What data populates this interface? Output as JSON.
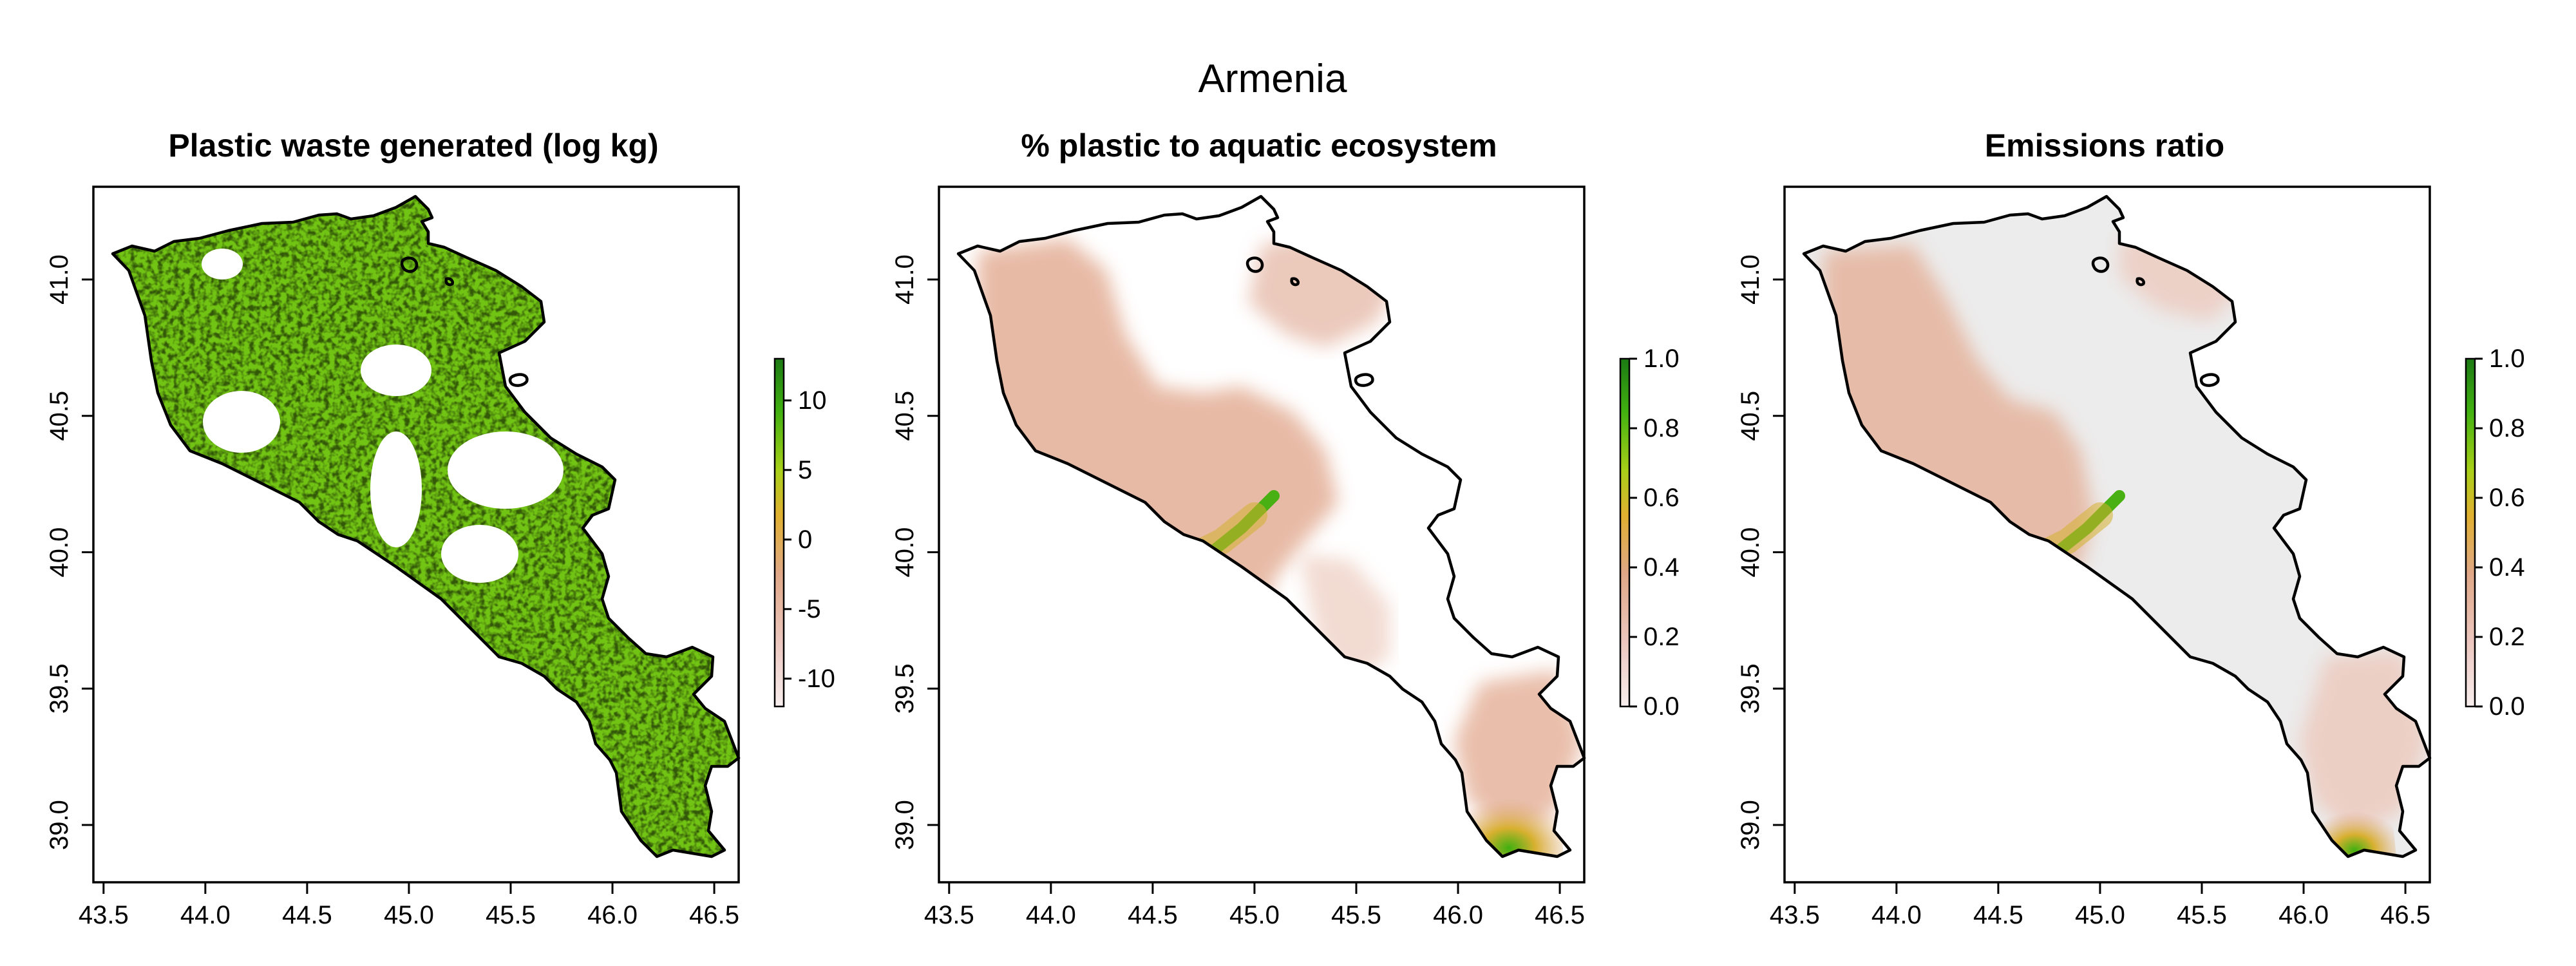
{
  "figure": {
    "title": "Armenia"
  },
  "colors": {
    "outline": "#000000",
    "land_fill": "#ffffff",
    "palette": [
      "#f8eeee",
      "#ecc8c0",
      "#e0a888",
      "#e0b030",
      "#a8d018",
      "#40b010",
      "#1c7a14"
    ],
    "background_grey": "#ececec",
    "waste_green": "#72c414"
  },
  "chart_data": [
    {
      "type": "heatmap",
      "title": "Plastic waste generated (log kg)",
      "xlim": [
        43.45,
        46.62
      ],
      "ylim": [
        38.79,
        41.34
      ],
      "xticks": [
        43.5,
        44.0,
        44.5,
        45.0,
        45.5,
        46.0,
        46.5
      ],
      "yticks": [
        39.0,
        39.5,
        40.0,
        40.5,
        41.0
      ],
      "xtick_labels": [
        "43.5",
        "44.0",
        "44.5",
        "45.0",
        "45.5",
        "46.0",
        "46.5"
      ],
      "ytick_labels": [
        "39.0",
        "39.5",
        "40.0",
        "40.5",
        "41.0"
      ],
      "colorbar": {
        "range": [
          -12,
          13
        ],
        "ticks": [
          -10,
          -5,
          0,
          5,
          10
        ],
        "tick_labels": [
          "-10",
          "-5",
          "0",
          "5",
          "10"
        ]
      },
      "pattern": "green-dominant over most of the country, white gaps at large lakes / mountains"
    },
    {
      "type": "heatmap",
      "title": "% plastic to aquatic ecosystem",
      "xlim": [
        43.45,
        46.62
      ],
      "ylim": [
        38.79,
        41.34
      ],
      "xticks": [
        43.5,
        44.0,
        44.5,
        45.0,
        45.5,
        46.0,
        46.5
      ],
      "yticks": [
        39.0,
        39.5,
        40.0,
        40.5,
        41.0
      ],
      "xtick_labels": [
        "43.5",
        "44.0",
        "44.5",
        "45.0",
        "45.5",
        "46.0",
        "46.5"
      ],
      "ytick_labels": [
        "39.0",
        "39.5",
        "40.0",
        "40.5",
        "41.0"
      ],
      "colorbar": {
        "range": [
          0,
          1
        ],
        "ticks": [
          0.0,
          0.2,
          0.4,
          0.6,
          0.8,
          1.0
        ],
        "tick_labels": [
          "0.0",
          "0.2",
          "0.4",
          "0.6",
          "0.8",
          "1.0"
        ]
      },
      "pattern": "highest along western/southern river borders, mostly 0.1-0.3 elsewhere, white in the east"
    },
    {
      "type": "heatmap",
      "title": "Emissions ratio",
      "xlim": [
        43.45,
        46.62
      ],
      "ylim": [
        38.79,
        41.34
      ],
      "xticks": [
        43.5,
        44.0,
        44.5,
        45.0,
        45.5,
        46.0,
        46.5
      ],
      "yticks": [
        39.0,
        39.5,
        40.0,
        40.5,
        41.0
      ],
      "xtick_labels": [
        "43.5",
        "44.0",
        "44.5",
        "45.0",
        "45.5",
        "46.0",
        "46.5"
      ],
      "ytick_labels": [
        "39.0",
        "39.5",
        "40.0",
        "40.5",
        "41.0"
      ],
      "colorbar": {
        "range": [
          0,
          1
        ],
        "ticks": [
          0.0,
          0.2,
          0.4,
          0.6,
          0.8,
          1.0
        ],
        "tick_labels": [
          "0.0",
          "0.2",
          "0.4",
          "0.6",
          "0.8",
          "1.0"
        ]
      },
      "pattern": "near zero (grey) over most of the country, higher along western/southern borders"
    }
  ]
}
